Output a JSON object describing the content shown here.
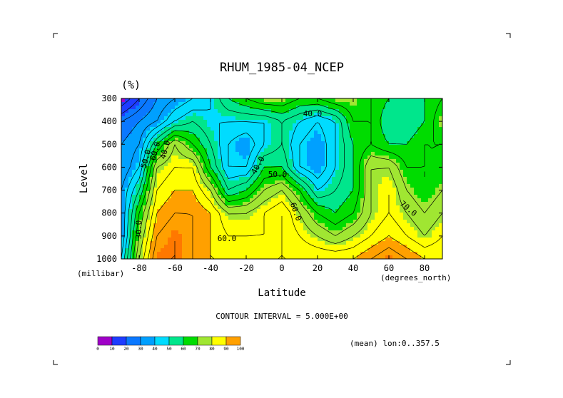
{
  "chart_data": {
    "type": "heatmap",
    "title": "RHUM_1985-04_NCEP",
    "units": "(%)",
    "xlabel": "Latitude",
    "xunits": "(degrees_north)",
    "ylabel": "Level",
    "yunits": "(millibar)",
    "xlim": [
      -90,
      90
    ],
    "ylim": [
      1000,
      300
    ],
    "xticks": [
      -80,
      -60,
      -40,
      -20,
      0,
      20,
      40,
      60,
      80
    ],
    "yticks": [
      300,
      400,
      500,
      600,
      700,
      800,
      900,
      1000
    ],
    "x": [
      -90,
      -80,
      -70,
      -60,
      -50,
      -40,
      -30,
      -20,
      -10,
      0,
      10,
      20,
      30,
      40,
      50,
      60,
      70,
      80,
      90
    ],
    "y": [
      300,
      400,
      500,
      600,
      700,
      800,
      900,
      1000
    ],
    "z": [
      [
        5,
        15,
        25,
        30,
        35,
        40,
        50,
        55,
        60,
        60,
        55,
        55,
        60,
        60,
        55,
        50,
        45,
        50,
        55
      ],
      [
        20,
        25,
        30,
        40,
        45,
        40,
        40,
        40,
        40,
        45,
        40,
        35,
        40,
        55,
        55,
        45,
        45,
        50,
        60
      ],
      [
        25,
        30,
        50,
        65,
        55,
        45,
        35,
        30,
        40,
        45,
        35,
        30,
        40,
        50,
        55,
        50,
        50,
        55,
        55
      ],
      [
        25,
        35,
        65,
        70,
        70,
        50,
        35,
        35,
        50,
        50,
        35,
        30,
        40,
        50,
        65,
        65,
        55,
        55,
        55
      ],
      [
        30,
        45,
        70,
        75,
        75,
        65,
        45,
        50,
        60,
        65,
        55,
        40,
        45,
        50,
        65,
        70,
        60,
        55,
        60
      ],
      [
        30,
        55,
        75,
        80,
        80,
        75,
        65,
        65,
        70,
        75,
        65,
        55,
        50,
        55,
        65,
        70,
        65,
        60,
        65
      ],
      [
        30,
        60,
        80,
        85,
        80,
        75,
        70,
        70,
        70,
        75,
        70,
        65,
        60,
        65,
        70,
        75,
        70,
        65,
        70
      ],
      [
        35,
        65,
        85,
        85,
        80,
        75,
        75,
        75,
        75,
        75,
        75,
        75,
        75,
        75,
        80,
        85,
        80,
        75,
        75
      ]
    ],
    "contour_labels": [
      "40.0",
      "50.0",
      "60.0",
      "40.0",
      "50.0",
      "40.0",
      "60.0",
      "70.0",
      "60.0",
      "30.0"
    ],
    "contour_interval_text": "CONTOUR INTERVAL = 5.000E+00",
    "colorbar": {
      "colors": [
        "#a000c8",
        "#1e3cff",
        "#0a78ff",
        "#00a0ff",
        "#00dcff",
        "#00e68c",
        "#00dc00",
        "#a0e632",
        "#ffff00",
        "#ffa000",
        "#ff7800",
        "#ff3000",
        "#e60000"
      ],
      "levels": [
        0,
        10,
        20,
        30,
        40,
        50,
        60,
        70,
        80,
        90,
        100
      ],
      "labels": [
        "0",
        "10",
        "20",
        "30",
        "40",
        "50",
        "60",
        "70",
        "80",
        "90",
        "100"
      ]
    },
    "note": "(mean) lon:0..357.5"
  }
}
